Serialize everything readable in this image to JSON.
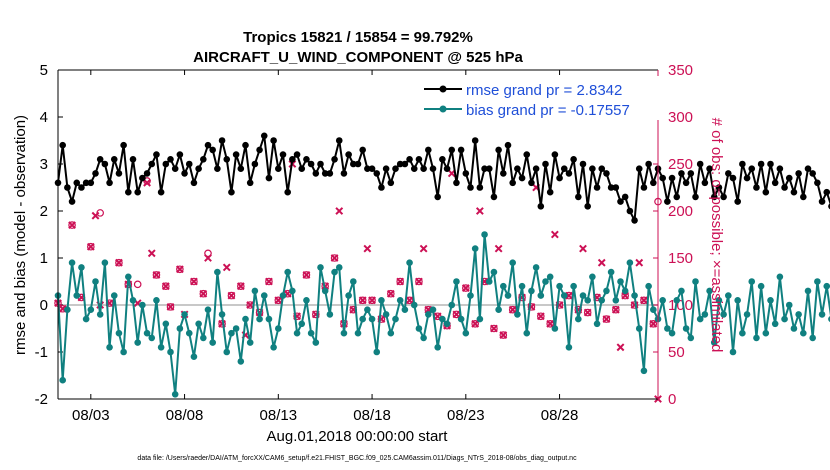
{
  "colors": {
    "rmse": "#000000",
    "bias": "#108080",
    "counts": "#cc1155",
    "zero_line": "#c8c8c8",
    "legend_text": "#1f4fd8"
  },
  "chart_data": {
    "type": "line",
    "title_line1": "Tropics 15821 / 15854 = 99.792%",
    "title_line2": "AIRCRAFT_U_WIND_COMPONENT @ 525 hPa",
    "xlabel": "Aug.01,2018 00:00:00 start",
    "ylabel_left": "rmse and bias (model - observation)",
    "ylabel_right": "# of obs: o=possible; ×=assimilated",
    "footnote": "data file: /Users/raeder/DAI/ATM_forcXX/CAM6_setup/f.e21.FHIST_BGC.f09_025.CAM6assim.011/Diags_NTrS_2018-08/obs_diag_output.nc",
    "x_range": [
      1.25,
      33.25
    ],
    "ylim_left": [
      -2,
      5
    ],
    "ylim_right": [
      0,
      350
    ],
    "x_ticks": [
      3,
      8,
      13,
      18,
      23,
      28
    ],
    "x_tick_labels": [
      "08/03",
      "08/08",
      "08/13",
      "08/18",
      "08/23",
      "08/28"
    ],
    "y_ticks_left": [
      -2,
      -1,
      0,
      1,
      2,
      3,
      4,
      5
    ],
    "y_tick_labels_left": [
      "-2",
      "-1",
      "0",
      "1",
      "2",
      "3",
      "4",
      "5"
    ],
    "y_ticks_right": [
      0,
      50,
      100,
      150,
      200,
      250,
      300,
      350
    ],
    "y_tick_labels_right": [
      "0",
      "50",
      "100",
      "150",
      "200",
      "250",
      "300",
      "350"
    ],
    "legend": [
      "rmse grand pr = 2.8342",
      "bias grand pr = -0.17557"
    ],
    "x_start": 1.25,
    "x_step": 0.25,
    "series": [
      {
        "name": "rmse grand pr = 2.8342",
        "values": [
          2.6,
          3.4,
          2.5,
          2.2,
          2.6,
          2.5,
          2.6,
          2.6,
          2.8,
          3.1,
          3.0,
          2.6,
          3.1,
          2.8,
          3.4,
          2.4,
          3.1,
          2.4,
          2.7,
          2.8,
          3.0,
          3.2,
          2.4,
          3.0,
          3.1,
          2.9,
          3.2,
          2.8,
          3.0,
          2.6,
          2.9,
          3.1,
          3.4,
          3.3,
          2.9,
          3.5,
          3.1,
          2.4,
          3.2,
          2.9,
          3.4,
          2.6,
          3.0,
          3.3,
          3.6,
          2.7,
          3.5,
          2.9,
          3.2,
          2.4,
          3.1,
          3.2,
          2.9,
          3.1,
          3.0,
          2.8,
          3.0,
          2.8,
          2.8,
          3.1,
          3.5,
          2.8,
          3.2,
          3.0,
          3.0,
          3.3,
          2.9,
          2.9,
          2.8,
          2.5,
          2.9,
          2.6,
          2.9,
          3.0,
          3.0,
          3.1,
          2.9,
          3.1,
          2.9,
          3.3,
          2.9,
          2.3,
          3.1,
          2.9,
          3.3,
          2.6,
          3.3,
          2.8,
          2.5,
          3.5,
          2.5,
          2.9,
          2.9,
          2.3,
          3.3,
          2.8,
          3.4,
          2.6,
          2.9,
          2.7,
          3.2,
          2.6,
          2.9,
          2.1,
          3.0,
          2.4,
          3.2,
          2.7,
          2.9,
          2.8,
          3.1,
          2.3,
          3.0,
          2.1,
          2.9,
          2.5,
          2.9,
          2.8,
          2.5,
          2.5,
          2.2,
          2.3,
          2.0,
          1.8,
          2.9,
          2.5,
          3.0,
          2.6,
          2.9,
          2.7,
          2.2,
          2.7,
          2.3,
          2.8,
          2.6,
          2.8,
          2.3,
          3.0,
          2.6,
          2.9,
          2.3,
          2.5,
          2.3,
          2.8,
          2.7,
          2.2,
          3.0,
          2.7,
          2.9,
          2.5,
          3.0,
          2.4,
          3.0,
          2.6,
          2.9,
          2.5,
          2.7,
          2.4,
          2.8,
          2.3,
          2.9,
          2.8,
          2.6,
          2.2,
          2.4,
          2.1,
          2.3,
          2.8,
          2.4,
          2.9,
          2.9,
          2.8,
          3.0,
          2.9,
          3.1,
          3.4,
          2.8,
          2.9,
          2.7,
          2.5,
          2.4,
          2.3,
          2.1
        ]
      },
      {
        "name": "bias grand pr = -0.17557",
        "values": [
          0.2,
          -1.6,
          -0.1,
          0.9,
          0.2,
          0.8,
          -0.3,
          -0.1,
          0.5,
          -0.2,
          0.9,
          -0.9,
          0.2,
          -0.6,
          -1.0,
          0.6,
          0.1,
          -0.8,
          0.0,
          -0.6,
          -0.7,
          0.1,
          -0.9,
          -0.4,
          -1.0,
          -1.9,
          -0.5,
          -0.2,
          -0.6,
          -1.1,
          -0.4,
          -0.7,
          -0.1,
          -0.8,
          0.7,
          -0.2,
          -1.0,
          -0.6,
          -0.5,
          -1.2,
          -0.3,
          -0.8,
          0.3,
          -0.3,
          0.2,
          -0.3,
          -0.9,
          -0.5,
          0.2,
          0.7,
          0.3,
          -0.6,
          -0.4,
          0.1,
          -0.6,
          -0.8,
          0.8,
          0.3,
          -0.2,
          0.7,
          0.8,
          -0.6,
          0.2,
          0.5,
          -0.6,
          -0.3,
          -0.1,
          -0.3,
          -1.0,
          0.1,
          -0.2,
          -0.6,
          -0.3,
          0.1,
          -0.1,
          0.9,
          0.0,
          -0.5,
          -0.7,
          -0.2,
          -0.1,
          -0.9,
          -0.3,
          -0.4,
          0.0,
          0.5,
          -0.3,
          -0.6,
          0.2,
          1.2,
          -0.3,
          1.5,
          0.5,
          0.7,
          -0.1,
          0.4,
          0.2,
          0.9,
          -0.2,
          0.4,
          -0.6,
          0.3,
          0.8,
          0.2,
          0.5,
          0.6,
          -0.5,
          0.4,
          0.2,
          -0.9,
          0.4,
          -0.3,
          0.2,
          0.1,
          0.6,
          -0.4,
          0.1,
          0.3,
          0.7,
          0.1,
          0.5,
          0.3,
          0.9,
          0.2,
          -0.5,
          -1.4,
          0.4,
          -0.1,
          -0.3,
          0.1,
          -0.5,
          -0.6,
          0.1,
          0.3,
          -0.5,
          -0.7,
          0.5,
          -0.3,
          -0.2,
          0.3,
          -0.8,
          0.1,
          -0.2,
          0.2,
          -1.0,
          0.1,
          -0.6,
          -0.2,
          0.5,
          -0.7,
          0.4,
          -0.6,
          0.1,
          -0.4,
          0.6,
          -0.3,
          0.0,
          -0.5,
          -0.2,
          -0.6,
          0.3,
          -0.7,
          0.5,
          -0.2,
          0.4,
          -0.3,
          0.7,
          -0.5,
          0.1,
          -0.8,
          -0.3,
          0.5,
          -0.9,
          0.2,
          -0.4,
          0.1,
          -0.1,
          0.3,
          -0.2
        ]
      }
    ],
    "obs_possible": [
      [
        1.25,
        102
      ],
      [
        1.5,
        96
      ],
      [
        2,
        185
      ],
      [
        2.5,
        108
      ],
      [
        3,
        162
      ],
      [
        3.5,
        198
      ],
      [
        4,
        102
      ],
      [
        4.5,
        145
      ],
      [
        5,
        122
      ],
      [
        5.5,
        122
      ],
      [
        6,
        232
      ],
      [
        6.5,
        132
      ],
      [
        7,
        120
      ],
      [
        7.25,
        98
      ],
      [
        7.75,
        138
      ],
      [
        8.5,
        125
      ],
      [
        9,
        112
      ],
      [
        9.25,
        155
      ],
      [
        10,
        80
      ],
      [
        10.5,
        110
      ],
      [
        11,
        120
      ],
      [
        11.5,
        100
      ],
      [
        12,
        92
      ],
      [
        12.5,
        125
      ],
      [
        13,
        105
      ],
      [
        13.5,
        112
      ],
      [
        14,
        88
      ],
      [
        14.5,
        132
      ],
      [
        15,
        90
      ],
      [
        15.5,
        120
      ],
      [
        16,
        150
      ],
      [
        16.5,
        80
      ],
      [
        17,
        95
      ],
      [
        17.5,
        105
      ],
      [
        18,
        105
      ],
      [
        18.5,
        85
      ],
      [
        19,
        112
      ],
      [
        19.5,
        125
      ],
      [
        20,
        105
      ],
      [
        20.5,
        125
      ],
      [
        21,
        95
      ],
      [
        21.5,
        88
      ],
      [
        22,
        78
      ],
      [
        22.5,
        90
      ],
      [
        23,
        118
      ],
      [
        23.5,
        80
      ],
      [
        24,
        125
      ],
      [
        24.5,
        75
      ],
      [
        25,
        68
      ],
      [
        25.5,
        95
      ],
      [
        26,
        108
      ],
      [
        26.5,
        98
      ],
      [
        27,
        88
      ],
      [
        27.5,
        80
      ],
      [
        28,
        100
      ],
      [
        28.5,
        110
      ],
      [
        29,
        95
      ],
      [
        29.5,
        92
      ],
      [
        30,
        108
      ],
      [
        30.5,
        85
      ],
      [
        31,
        95
      ],
      [
        31.5,
        110
      ],
      [
        32,
        100
      ],
      [
        32.5,
        105
      ],
      [
        33,
        80
      ],
      [
        33.25,
        210
      ]
    ],
    "obs_assimilated": [
      [
        1.25,
        102
      ],
      [
        1.5,
        96
      ],
      [
        2,
        185
      ],
      [
        2.5,
        108
      ],
      [
        3,
        162
      ],
      [
        3.25,
        195
      ],
      [
        3.5,
        100
      ],
      [
        4,
        102
      ],
      [
        4.5,
        145
      ],
      [
        5,
        122
      ],
      [
        5.5,
        102
      ],
      [
        6,
        230
      ],
      [
        6.25,
        155
      ],
      [
        6.5,
        132
      ],
      [
        7,
        120
      ],
      [
        7.25,
        98
      ],
      [
        7.75,
        138
      ],
      [
        8,
        90
      ],
      [
        8.5,
        125
      ],
      [
        9,
        112
      ],
      [
        9.25,
        150
      ],
      [
        10,
        80
      ],
      [
        10.25,
        140
      ],
      [
        10.5,
        110
      ],
      [
        11,
        120
      ],
      [
        11.25,
        68
      ],
      [
        11.5,
        100
      ],
      [
        12,
        92
      ],
      [
        12.5,
        125
      ],
      [
        13,
        105
      ],
      [
        13.5,
        112
      ],
      [
        13.75,
        250
      ],
      [
        14,
        88
      ],
      [
        14.5,
        132
      ],
      [
        15,
        90
      ],
      [
        15.5,
        120
      ],
      [
        16,
        150
      ],
      [
        16.25,
        200
      ],
      [
        16.5,
        80
      ],
      [
        17,
        95
      ],
      [
        17.5,
        105
      ],
      [
        17.75,
        160
      ],
      [
        18,
        105
      ],
      [
        18.5,
        85
      ],
      [
        19,
        112
      ],
      [
        19.5,
        125
      ],
      [
        20,
        105
      ],
      [
        20.5,
        125
      ],
      [
        20.75,
        160
      ],
      [
        21,
        95
      ],
      [
        21.5,
        88
      ],
      [
        22,
        78
      ],
      [
        22.25,
        240
      ],
      [
        22.5,
        90
      ],
      [
        23,
        118
      ],
      [
        23.5,
        80
      ],
      [
        23.75,
        200
      ],
      [
        24,
        125
      ],
      [
        24.5,
        75
      ],
      [
        24.75,
        160
      ],
      [
        25,
        68
      ],
      [
        25.5,
        95
      ],
      [
        26,
        108
      ],
      [
        26.5,
        98
      ],
      [
        26.75,
        225
      ],
      [
        27,
        88
      ],
      [
        27.5,
        80
      ],
      [
        27.75,
        175
      ],
      [
        28,
        100
      ],
      [
        28.5,
        110
      ],
      [
        29,
        95
      ],
      [
        29.25,
        160
      ],
      [
        29.5,
        92
      ],
      [
        30,
        108
      ],
      [
        30.25,
        145
      ],
      [
        30.5,
        85
      ],
      [
        31,
        95
      ],
      [
        31.25,
        55
      ],
      [
        31.5,
        110
      ],
      [
        32,
        100
      ],
      [
        32.25,
        145
      ],
      [
        32.5,
        105
      ],
      [
        33,
        80
      ],
      [
        33.25,
        0
      ]
    ]
  }
}
